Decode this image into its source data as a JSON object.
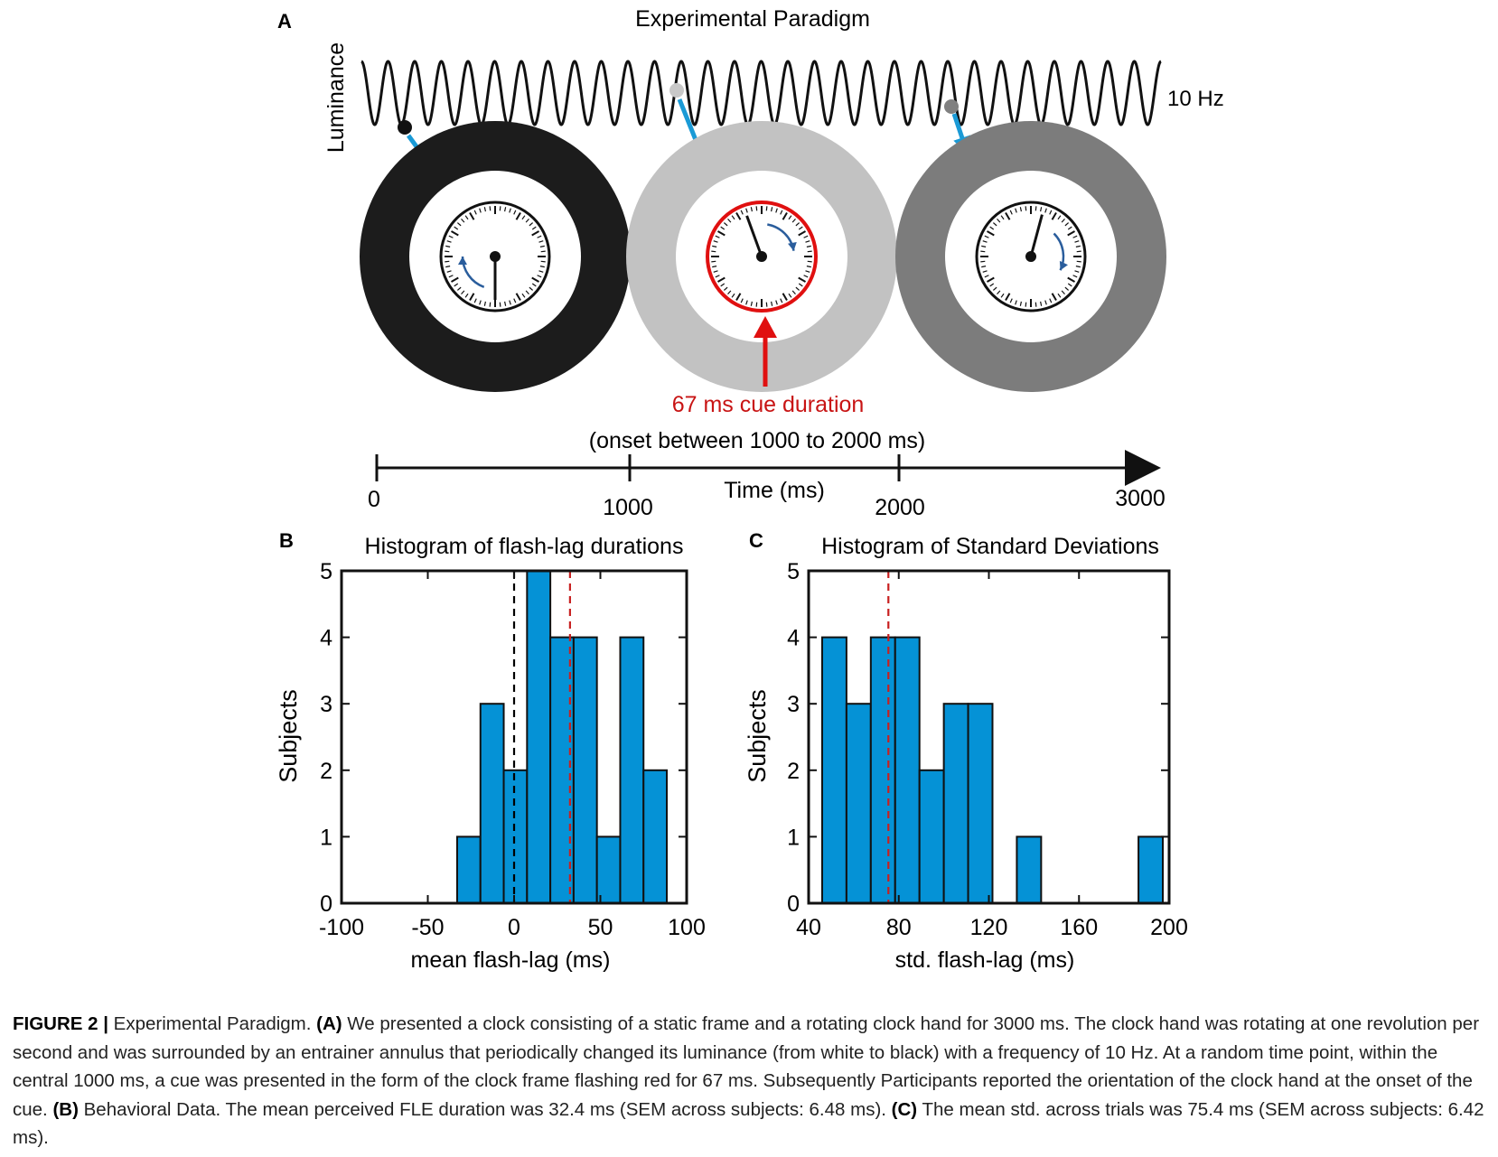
{
  "panel_a": {
    "letter": "A",
    "title": "Experimental Paradigm",
    "y_label": "Luminance",
    "frequency_label": "10 Hz",
    "cue_label": "67 ms cue duration",
    "onset_label": "(onset between 1000 to 2000 ms)",
    "time_label": "Time (ms)",
    "timeline_ticks": [
      "0",
      "1000",
      "2000",
      "3000"
    ],
    "annulus_colors": [
      "#1c1c1c",
      "#c2c2c2",
      "#7c7c7c"
    ],
    "arrow_color": "#1a9ad6",
    "cue_color": "#e01010"
  },
  "chart_data": [
    {
      "type": "bar",
      "letter": "B",
      "title": "Histogram of flash-lag durations",
      "xlabel": "mean flash-lag (ms)",
      "ylabel": "Subjects",
      "xlim": [
        -100,
        100
      ],
      "ylim": [
        0,
        5
      ],
      "xticks": [
        -100,
        -50,
        0,
        50,
        100
      ],
      "yticks": [
        0,
        1,
        2,
        3,
        4,
        5
      ],
      "bin_width": 13.5,
      "bin_start": -33,
      "values": [
        1,
        3,
        2,
        5,
        4,
        4,
        1,
        4,
        2
      ],
      "bar_color": "#0592d6",
      "reference_lines": [
        {
          "x": 0,
          "color": "#000000"
        },
        {
          "x": 32.4,
          "color": "#c82020"
        }
      ]
    },
    {
      "type": "bar",
      "letter": "C",
      "title": "Histogram of Standard Deviations",
      "xlabel": "std. flash-lag (ms)",
      "ylabel": "Subjects",
      "xlim": [
        40,
        200
      ],
      "ylim": [
        0,
        5
      ],
      "xticks": [
        40,
        80,
        120,
        160,
        200
      ],
      "yticks": [
        0,
        1,
        2,
        3,
        4,
        5
      ],
      "bin_width": 10.8,
      "bin_start": 46,
      "values": [
        4,
        3,
        4,
        4,
        2,
        3,
        3,
        0,
        1,
        0,
        0,
        0,
        0,
        1
      ],
      "bar_color": "#0592d6",
      "reference_lines": [
        {
          "x": 75.4,
          "color": "#c82020"
        }
      ]
    }
  ],
  "caption": {
    "figure_label": "FIGURE 2 |",
    "intro": " Experimental Paradigm. ",
    "a_label": "(A)",
    "a_text": " We presented a clock consisting of a static frame and a rotating clock hand for 3000 ms. The clock hand was rotating at one revolution per second and was surrounded by an entrainer annulus that periodically changed its luminance (from white to black) with a frequency of 10 Hz. At a random time point, within the central 1000 ms, a cue was presented in the form of the clock frame flashing red for 67 ms. Subsequently Participants reported the orientation of the clock hand at the onset of the cue. ",
    "b_label": "(B)",
    "b_text": " Behavioral Data. The mean perceived FLE duration was 32.4 ms (SEM across subjects: 6.48 ms). ",
    "c_label": "(C)",
    "c_text": " The mean std. across trials was 75.4 ms (SEM across subjects: 6.42 ms)."
  }
}
